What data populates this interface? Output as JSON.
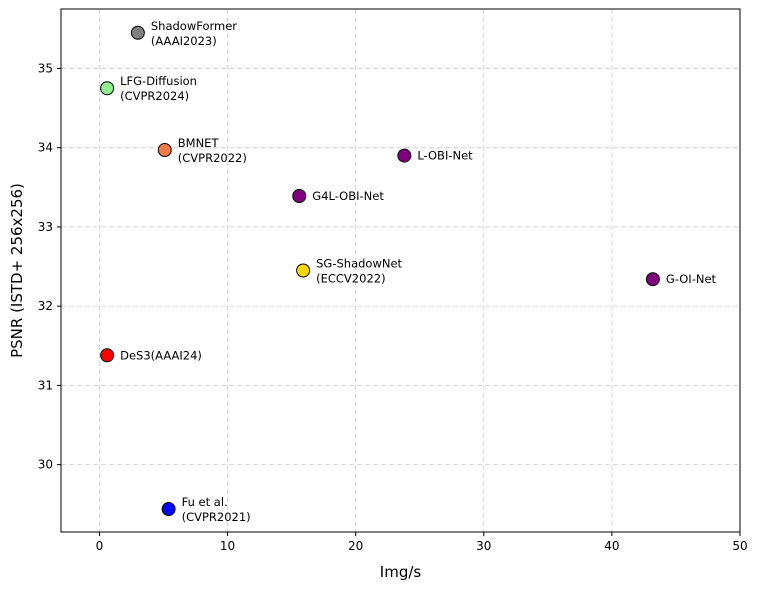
{
  "chart_data": {
    "type": "scatter",
    "title": "",
    "xlabel": "Img/s",
    "ylabel": "PSNR (ISTD+ 256x256)",
    "xlim": [
      -3,
      50
    ],
    "ylim": [
      29.15,
      35.75
    ],
    "xticks": [
      0,
      10,
      20,
      30,
      40,
      50
    ],
    "yticks": [
      30,
      31,
      32,
      33,
      34,
      35
    ],
    "grid": true,
    "points": [
      {
        "label": [
          "ShadowFormer",
          "(AAAI2023)"
        ],
        "x": 3.0,
        "y": 35.45,
        "color": "#808080"
      },
      {
        "label": [
          "LFG-Diffusion",
          "(CVPR2024)"
        ],
        "x": 0.6,
        "y": 34.75,
        "color": "#90ee90"
      },
      {
        "label": [
          "BMNET",
          "(CVPR2022)"
        ],
        "x": 5.1,
        "y": 33.97,
        "color": "#f07a48"
      },
      {
        "label": [
          "L-OBI-Net"
        ],
        "x": 23.8,
        "y": 33.9,
        "color": "#800080"
      },
      {
        "label": [
          "G4L-OBI-Net"
        ],
        "x": 15.6,
        "y": 33.39,
        "color": "#800080"
      },
      {
        "label": [
          "SG-ShadowNet",
          "(ECCV2022)"
        ],
        "x": 15.9,
        "y": 32.45,
        "color": "#ffd700"
      },
      {
        "label": [
          "G-OI-Net"
        ],
        "x": 43.2,
        "y": 32.34,
        "color": "#800080"
      },
      {
        "label": [
          "DeS3(AAAI24)"
        ],
        "x": 0.6,
        "y": 31.38,
        "color": "#ff0000"
      },
      {
        "label": [
          "Fu et al.",
          "(CVPR2021)"
        ],
        "x": 5.4,
        "y": 29.44,
        "color": "#0000ff"
      }
    ]
  }
}
